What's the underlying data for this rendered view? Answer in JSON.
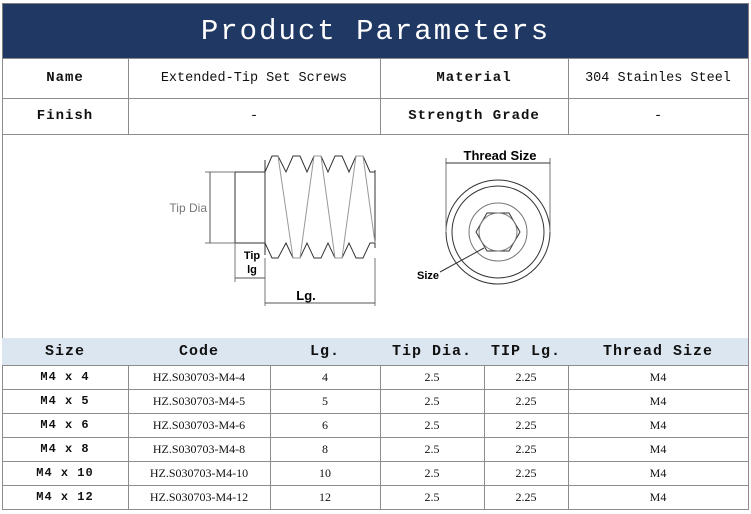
{
  "header": {
    "title": "Product Parameters"
  },
  "specs": {
    "rows": [
      [
        "Name",
        "Extended-Tip Set Screws",
        "Material",
        "304 Stainles Steel"
      ],
      [
        "Finish",
        "-",
        "Strength Grade",
        "-"
      ]
    ]
  },
  "diagram": {
    "labels": {
      "tip_dia": "Tip Dia",
      "tip": "Tip",
      "lg": "lg",
      "length": "Lg.",
      "thread_size": "Thread Size",
      "size": "Size"
    }
  },
  "table": {
    "columns": [
      "Size",
      "Code",
      "Lg.",
      "Tip Dia.",
      "TIP Lg.",
      "Thread Size"
    ],
    "rows": [
      [
        "M4 x 4",
        "HZ.S030703-M4-4",
        "4",
        "2.5",
        "2.25",
        "M4"
      ],
      [
        "M4 x 5",
        "HZ.S030703-M4-5",
        "5",
        "2.5",
        "2.25",
        "M4"
      ],
      [
        "M4 x 6",
        "HZ.S030703-M4-6",
        "6",
        "2.5",
        "2.25",
        "M4"
      ],
      [
        "M4 x 8",
        "HZ.S030703-M4-8",
        "8",
        "2.5",
        "2.25",
        "M4"
      ],
      [
        "M4 x 10",
        "HZ.S030703-M4-10",
        "10",
        "2.5",
        "2.25",
        "M4"
      ],
      [
        "M4 x 12",
        "HZ.S030703-M4-12",
        "12",
        "2.5",
        "2.25",
        "M4"
      ]
    ]
  }
}
